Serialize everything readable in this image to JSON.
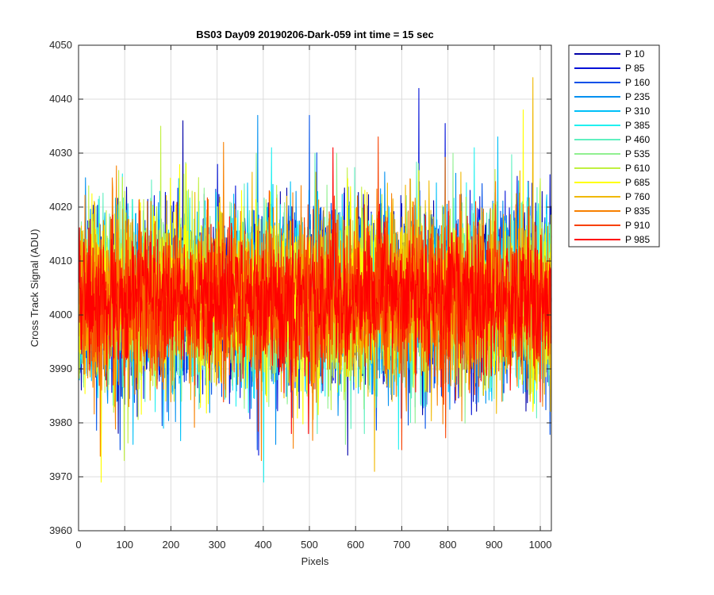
{
  "chart_data": {
    "type": "line",
    "title": "BS03 Day09 20190206-Dark-059 int time = 15 sec",
    "xlabel": "Pixels",
    "ylabel": "Cross Track Signal (ADU)",
    "xlim": [
      0,
      1024
    ],
    "ylim": [
      3960,
      4050
    ],
    "xticks": [
      "0",
      "100",
      "200",
      "300",
      "400",
      "500",
      "600",
      "700",
      "800",
      "900",
      "1000"
    ],
    "yticks": [
      "3960",
      "3970",
      "3980",
      "3990",
      "4000",
      "4010",
      "4020",
      "4030",
      "4040",
      "4050"
    ],
    "grid": true,
    "legend_position": "outside-top-right",
    "points_per_series": 1024,
    "series": [
      {
        "name": "P 10",
        "color": "#0000A8",
        "mean": 4003,
        "std": 8,
        "max": 4036,
        "min": 3974
      },
      {
        "name": "P 85",
        "color": "#0010D8",
        "mean": 4003,
        "std": 8,
        "max": 4042,
        "min": 3974
      },
      {
        "name": "P 160",
        "color": "#0050E8",
        "mean": 4003,
        "std": 8,
        "max": 4037,
        "min": 3975
      },
      {
        "name": "P 235",
        "color": "#0090F0",
        "mean": 4003,
        "std": 8,
        "max": 4037,
        "min": 3976
      },
      {
        "name": "P 310",
        "color": "#00C0F8",
        "mean": 4003,
        "std": 8,
        "max": 4033,
        "min": 3976
      },
      {
        "name": "P 385",
        "color": "#20F0F0",
        "mean": 4003,
        "std": 8,
        "max": 4031,
        "min": 3969
      },
      {
        "name": "P 460",
        "color": "#60F0C0",
        "mean": 4003,
        "std": 8,
        "max": 4030,
        "min": 3978
      },
      {
        "name": "P 535",
        "color": "#90F090",
        "mean": 4003,
        "std": 8,
        "max": 4030,
        "min": 3976
      },
      {
        "name": "P 610",
        "color": "#C0F040",
        "mean": 4003,
        "std": 8,
        "max": 4035,
        "min": 3973
      },
      {
        "name": "P 685",
        "color": "#FFFF00",
        "mean": 4003,
        "std": 8,
        "max": 4038,
        "min": 3969
      },
      {
        "name": "P 760",
        "color": "#F0B800",
        "mean": 4003,
        "std": 8,
        "max": 4044,
        "min": 3971
      },
      {
        "name": "P 835",
        "color": "#F88000",
        "mean": 4003,
        "std": 8,
        "max": 4032,
        "min": 3973
      },
      {
        "name": "P 910",
        "color": "#F84000",
        "mean": 4003,
        "std": 7.5,
        "max": 4033,
        "min": 3975
      },
      {
        "name": "P 985",
        "color": "#FF0000",
        "mean": 4003,
        "std": 6.5,
        "max": 4031,
        "min": 3978
      }
    ]
  }
}
